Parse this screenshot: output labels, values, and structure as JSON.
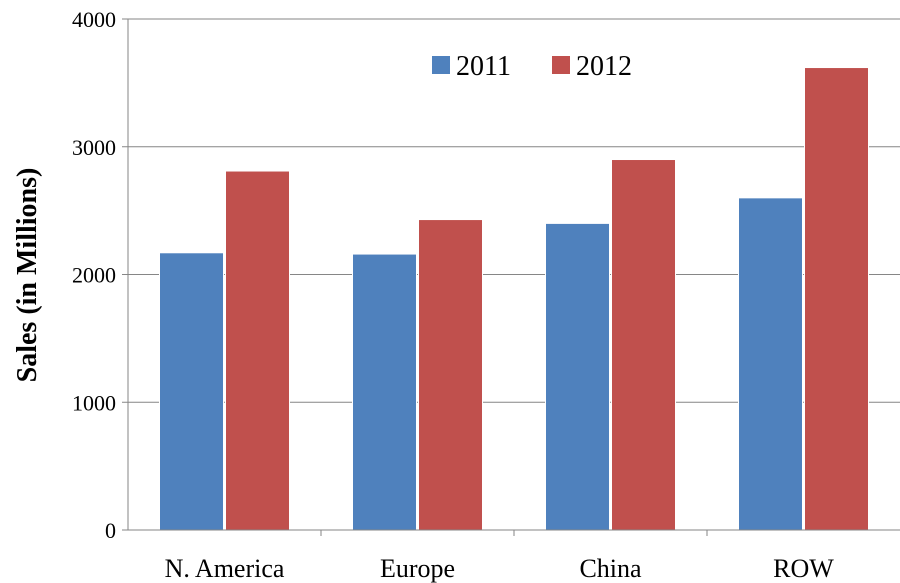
{
  "chart_data": {
    "type": "bar",
    "title": "",
    "xlabel": "",
    "ylabel": "Sales (in Millions)",
    "categories": [
      "N. America",
      "Europe",
      "China",
      "ROW"
    ],
    "series": [
      {
        "name": "2011",
        "color": "#4f81bd",
        "values": [
          2170,
          2160,
          2400,
          2600
        ]
      },
      {
        "name": "2012",
        "color": "#c0504d",
        "values": [
          2810,
          2430,
          2900,
          3620
        ]
      }
    ],
    "ylim": [
      0,
      4000
    ],
    "yticks": [
      "0",
      "1000",
      "2000",
      "3000",
      "4000"
    ],
    "grid": true,
    "legend_position": "top-center"
  }
}
